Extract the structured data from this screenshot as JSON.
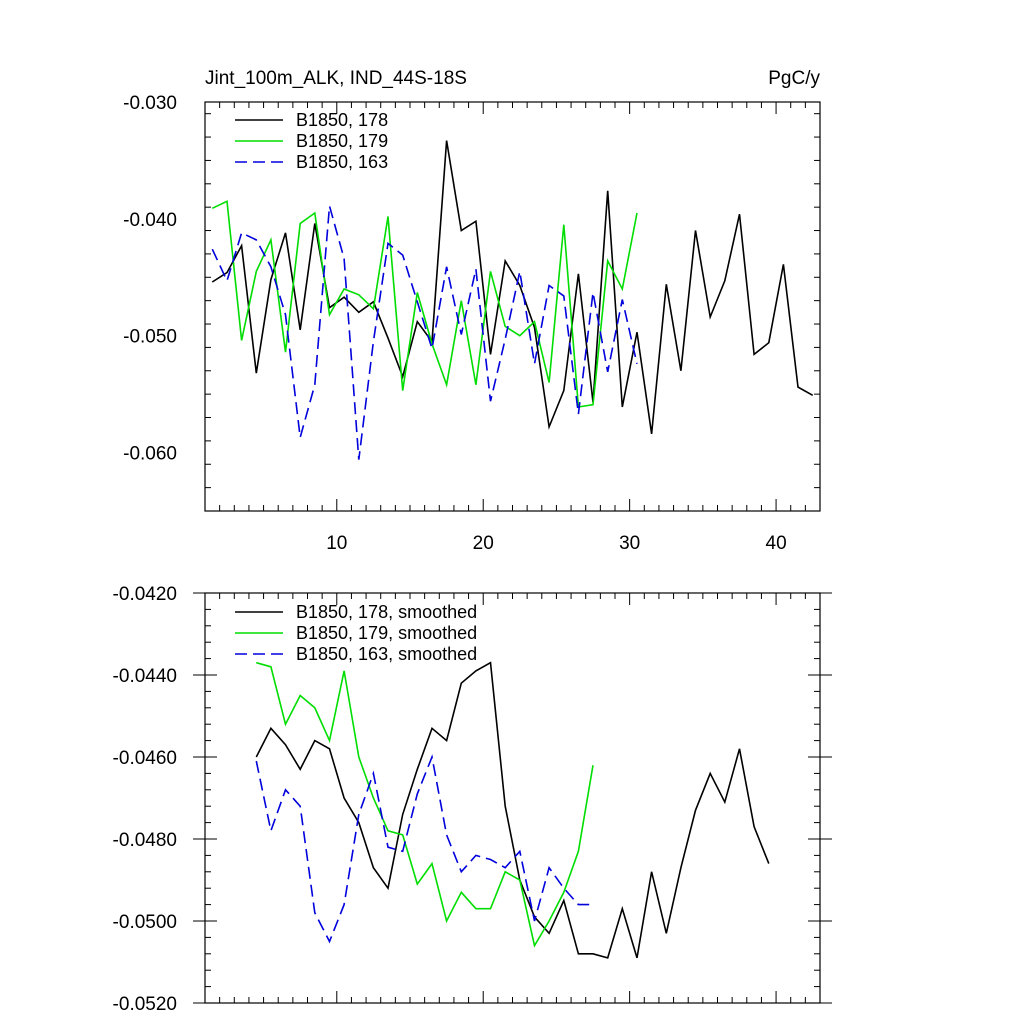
{
  "chart_data": [
    {
      "type": "line",
      "title": "Jint_100m_ALK, IND_44S-18S",
      "units": "PgC/y",
      "xlim": [
        1,
        43
      ],
      "ylim": [
        -0.065,
        -0.03
      ],
      "xticks": [
        10,
        20,
        30,
        40
      ],
      "xticklabels": [
        "10",
        "20",
        "30",
        "40"
      ],
      "yticks": [
        -0.03,
        -0.04,
        -0.05,
        -0.06
      ],
      "yticklabels": [
        "-0.030",
        "-0.040",
        "-0.050",
        "-0.060"
      ],
      "series": [
        {
          "name": "B1850, 178",
          "color": "#000000",
          "dash": "solid",
          "x": [
            1.5,
            2.5,
            3.5,
            4.5,
            5.5,
            6.5,
            7.5,
            8.5,
            9.5,
            10.5,
            11.5,
            12.5,
            13.5,
            14.5,
            15.5,
            16.5,
            17.5,
            18.5,
            19.5,
            20.5,
            21.5,
            22.5,
            23.5,
            24.5,
            25.5,
            26.5,
            27.5,
            28.5,
            29.5,
            30.5,
            31.5,
            32.5,
            33.5,
            34.5,
            35.5,
            36.5,
            37.5,
            38.5,
            39.5,
            40.5,
            41.5,
            42.5
          ],
          "y": [
            -0.0454,
            -0.0446,
            -0.0423,
            -0.0532,
            -0.0452,
            -0.0412,
            -0.0495,
            -0.0404,
            -0.0476,
            -0.0467,
            -0.048,
            -0.0471,
            -0.0502,
            -0.0535,
            -0.0488,
            -0.0505,
            -0.0333,
            -0.041,
            -0.0402,
            -0.0516,
            -0.0436,
            -0.0457,
            -0.0493,
            -0.0578,
            -0.0547,
            -0.0447,
            -0.0557,
            -0.0376,
            -0.0561,
            -0.0497,
            -0.0584,
            -0.0456,
            -0.053,
            -0.041,
            -0.0484,
            -0.0453,
            -0.0396,
            -0.0516,
            -0.0506,
            -0.0439,
            -0.0544,
            -0.0551
          ]
        },
        {
          "name": "B1850, 179",
          "color": "#00dd00",
          "dash": "solid",
          "x": [
            1.5,
            2.5,
            3.5,
            4.5,
            5.5,
            6.5,
            7.5,
            8.5,
            9.5,
            10.5,
            11.5,
            12.5,
            13.5,
            14.5,
            15.5,
            16.5,
            17.5,
            18.5,
            19.5,
            20.5,
            21.5,
            22.5,
            23.5,
            24.5,
            25.5,
            26.5,
            27.5,
            28.5,
            29.5,
            30.5
          ],
          "y": [
            -0.0391,
            -0.0385,
            -0.0504,
            -0.0445,
            -0.0418,
            -0.0514,
            -0.0404,
            -0.0395,
            -0.0482,
            -0.046,
            -0.0465,
            -0.0477,
            -0.0398,
            -0.0547,
            -0.0463,
            -0.0507,
            -0.0542,
            -0.047,
            -0.0542,
            -0.0445,
            -0.0492,
            -0.05,
            -0.0488,
            -0.054,
            -0.0405,
            -0.0561,
            -0.0559,
            -0.0436,
            -0.046,
            -0.0395
          ]
        },
        {
          "name": "B1850, 163",
          "color": "#0000dd",
          "dash": "dashed",
          "x": [
            1.5,
            2.5,
            3.5,
            4.5,
            5.5,
            6.5,
            7.5,
            8.5,
            9.5,
            10.5,
            11.5,
            12.5,
            13.5,
            14.5,
            15.5,
            16.5,
            17.5,
            18.5,
            19.5,
            20.5,
            21.5,
            22.5,
            23.5,
            24.5,
            25.5,
            26.5,
            27.5,
            28.5,
            29.5,
            30.5
          ],
          "y": [
            -0.0426,
            -0.0453,
            -0.0412,
            -0.0418,
            -0.0441,
            -0.0482,
            -0.0587,
            -0.0542,
            -0.0389,
            -0.0434,
            -0.0606,
            -0.0505,
            -0.0421,
            -0.0431,
            -0.0471,
            -0.0511,
            -0.0441,
            -0.0499,
            -0.0443,
            -0.0556,
            -0.0503,
            -0.0445,
            -0.0524,
            -0.0457,
            -0.0466,
            -0.0567,
            -0.0463,
            -0.0531,
            -0.0469,
            -0.0524
          ]
        }
      ]
    },
    {
      "type": "line",
      "xlim": [
        1,
        43
      ],
      "ylim": [
        -0.052,
        -0.042
      ],
      "xticks": [
        10,
        20,
        30,
        40
      ],
      "xticklabels": [],
      "yticks": [
        -0.042,
        -0.044,
        -0.046,
        -0.048,
        -0.05,
        -0.052
      ],
      "yticklabels": [
        "-0.0420",
        "-0.0440",
        "-0.0460",
        "-0.0480",
        "-0.0500",
        "-0.0520"
      ],
      "series": [
        {
          "name": "B1850, 178, smoothed",
          "color": "#000000",
          "dash": "solid",
          "x": [
            4.5,
            5.5,
            6.5,
            7.5,
            8.5,
            9.5,
            10.5,
            11.5,
            12.5,
            13.5,
            14.5,
            15.5,
            16.5,
            17.5,
            18.5,
            19.5,
            20.5,
            21.5,
            22.5,
            23.5,
            24.5,
            25.5,
            26.5,
            27.5,
            28.5,
            29.5,
            30.5,
            31.5,
            32.5,
            33.5,
            34.5,
            35.5,
            36.5,
            37.5,
            38.5,
            39.5
          ],
          "y": [
            -0.046,
            -0.0453,
            -0.0457,
            -0.0463,
            -0.0456,
            -0.0458,
            -0.047,
            -0.0476,
            -0.0487,
            -0.0492,
            -0.0474,
            -0.0463,
            -0.0453,
            -0.0456,
            -0.0442,
            -0.0439,
            -0.0437,
            -0.0472,
            -0.049,
            -0.0499,
            -0.0503,
            -0.0495,
            -0.0508,
            -0.0508,
            -0.0509,
            -0.0497,
            -0.0509,
            -0.0488,
            -0.0503,
            -0.0487,
            -0.0473,
            -0.0464,
            -0.0471,
            -0.0458,
            -0.0477,
            -0.0486
          ]
        },
        {
          "name": "B1850, 179, smoothed",
          "color": "#00dd00",
          "dash": "solid",
          "x": [
            4.5,
            5.5,
            6.5,
            7.5,
            8.5,
            9.5,
            10.5,
            11.5,
            12.5,
            13.5,
            14.5,
            15.5,
            16.5,
            17.5,
            18.5,
            19.5,
            20.5,
            21.5,
            22.5,
            23.5,
            24.5,
            25.5,
            26.5,
            27.5
          ],
          "y": [
            -0.0437,
            -0.0438,
            -0.0452,
            -0.0445,
            -0.0448,
            -0.0456,
            -0.0439,
            -0.046,
            -0.047,
            -0.0478,
            -0.0479,
            -0.0491,
            -0.0486,
            -0.05,
            -0.0493,
            -0.0497,
            -0.0497,
            -0.0488,
            -0.049,
            -0.0506,
            -0.05,
            -0.0493,
            -0.0483,
            -0.0462
          ]
        },
        {
          "name": "B1850, 163, smoothed",
          "color": "#0000dd",
          "dash": "dashed",
          "x": [
            4.5,
            5.5,
            6.5,
            7.5,
            8.5,
            9.5,
            10.5,
            11.5,
            12.5,
            13.5,
            14.5,
            15.5,
            16.5,
            17.5,
            18.5,
            19.5,
            20.5,
            21.5,
            22.5,
            23.5,
            24.5,
            25.5,
            26.5,
            27.5
          ],
          "y": [
            -0.0461,
            -0.0478,
            -0.0468,
            -0.0472,
            -0.0498,
            -0.0505,
            -0.0496,
            -0.0474,
            -0.0464,
            -0.0482,
            -0.0483,
            -0.0469,
            -0.046,
            -0.0479,
            -0.0488,
            -0.0484,
            -0.0485,
            -0.0487,
            -0.0483,
            -0.05,
            -0.0487,
            -0.0492,
            -0.0496,
            -0.0496
          ]
        }
      ]
    }
  ]
}
